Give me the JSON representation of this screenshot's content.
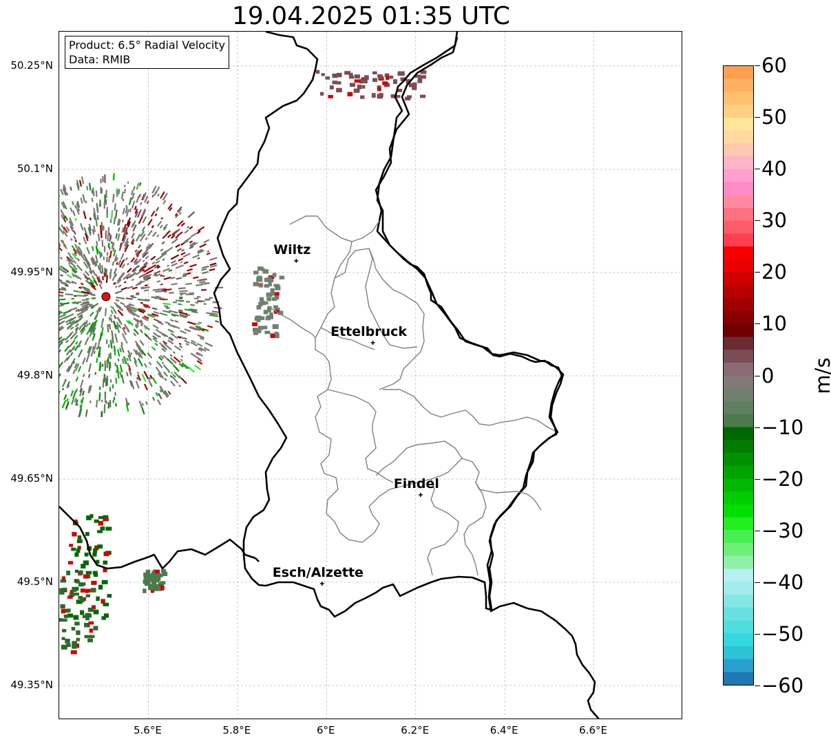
{
  "title": "19.04.2025 01:35 UTC",
  "info_box": {
    "product": "Product: 6.5° Radial Velocity",
    "data_source": "Data: RMIB"
  },
  "map": {
    "lon_range": [
      5.4,
      6.8
    ],
    "lat_range": [
      49.3,
      50.3
    ],
    "lat_ticks": [
      "50.25°N",
      "50.1°N",
      "49.95°N",
      "49.8°N",
      "49.65°N",
      "49.5°N",
      "49.35°N"
    ],
    "lat_values": [
      50.25,
      50.1,
      49.95,
      49.8,
      49.65,
      49.5,
      49.35
    ],
    "lon_ticks": [
      "5.6°E",
      "5.8°E",
      "6°E",
      "6.2°E",
      "6.4°E",
      "6.6°E"
    ],
    "lon_values": [
      5.6,
      5.8,
      6.0,
      6.2,
      6.4,
      6.6
    ],
    "radar_site": {
      "lon": 5.505,
      "lat": 49.915
    },
    "cities": [
      {
        "name": "Wiltz",
        "lon": 5.932,
        "lat": 49.967
      },
      {
        "name": "Ettelbruck",
        "lon": 6.104,
        "lat": 49.848
      },
      {
        "name": "Findel",
        "lon": 6.211,
        "lat": 49.627
      },
      {
        "name": "Esch/Alzette",
        "lon": 5.99,
        "lat": 49.498
      }
    ]
  },
  "colorbar": {
    "unit": "m/s",
    "ticks": [
      "60",
      "50",
      "40",
      "30",
      "20",
      "10",
      "0",
      "−10",
      "−20",
      "−30",
      "−40",
      "−50",
      "−60"
    ],
    "tick_values": [
      60,
      50,
      40,
      30,
      20,
      10,
      0,
      -10,
      -20,
      -30,
      -40,
      -50,
      -60
    ],
    "range": [
      -60,
      60
    ],
    "colors": [
      "#1f77b4",
      "#2a9fcf",
      "#2cc3d6",
      "#33d9e0",
      "#4fdede",
      "#66e0e0",
      "#85e6e6",
      "#a3ecec",
      "#b7f0f0",
      "#8ff0a8",
      "#6cf07a",
      "#47f050",
      "#22ee22",
      "#00e000",
      "#00cc00",
      "#00b800",
      "#00a400",
      "#009000",
      "#007c00",
      "#006800",
      "#4d7a4d",
      "#5f8060",
      "#70806f",
      "#807a78",
      "#8a6a74",
      "#7a4d54",
      "#6b2b33",
      "#700000",
      "#880000",
      "#a00000",
      "#b80000",
      "#d00000",
      "#e80000",
      "#f80000",
      "#ff4050",
      "#ff5a6a",
      "#ff7080",
      "#ff8aa0",
      "#ff8ac8",
      "#ff9ed0",
      "#ffb4c8",
      "#ffc8b0",
      "#ffd9a0",
      "#ffe599",
      "#ffd080",
      "#ffc070",
      "#ffb060",
      "#ffa050"
    ]
  }
}
